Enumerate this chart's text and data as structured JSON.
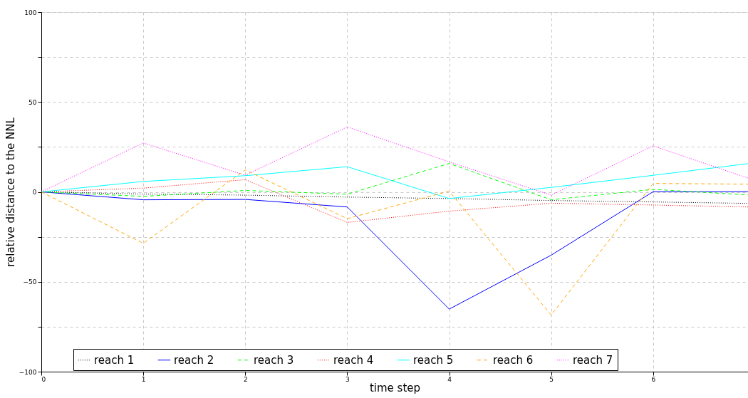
{
  "chart_data": {
    "type": "line",
    "xlabel": "time step",
    "ylabel": "relative distance to the NNL",
    "xlim": [
      0,
      6.93
    ],
    "ylim": [
      -100,
      100
    ],
    "xticks": [
      0,
      1,
      2,
      3,
      4,
      5,
      6
    ],
    "yticks": [
      -100,
      {
        "value": -75,
        "label": null
      },
      -50,
      {
        "value": -25,
        "label": null
      },
      0,
      {
        "value": 25,
        "label": null
      },
      50,
      {
        "value": 75,
        "label": null
      },
      100
    ],
    "x": [
      0,
      1,
      2,
      3,
      4,
      5,
      6,
      6.93
    ],
    "grid": true,
    "legend": "bottom",
    "marker": "none",
    "series": [
      {
        "name": "reach 1",
        "color": "#000000",
        "line_style": "dotted",
        "values": [
          0,
          -1.2,
          -1.8,
          -2.9,
          -3.7,
          -4.8,
          -5.6,
          -6.4
        ]
      },
      {
        "name": "reach 2",
        "color": "#0000ff",
        "line_style": "solid",
        "values": [
          0,
          -4.4,
          -4.2,
          -8.4,
          -65.2,
          -35.2,
          0.1,
          0.1
        ]
      },
      {
        "name": "reach 3",
        "color": "#00ff00",
        "line_style": "dashed",
        "values": [
          0,
          -2.5,
          0.8,
          -1.3,
          15.8,
          -4.4,
          1.4,
          -1.7
        ]
      },
      {
        "name": "reach 4",
        "color": "#ff0000",
        "line_style": "dotted",
        "values": [
          0,
          2.1,
          6.8,
          -17,
          -10.7,
          -6.3,
          -7.3,
          -8.4
        ]
      },
      {
        "name": "reach 5",
        "color": "#00ffff",
        "line_style": "solid",
        "values": [
          0,
          5.8,
          9,
          14,
          -3.7,
          2.5,
          9.2,
          15.7
        ]
      },
      {
        "name": "reach 6",
        "color": "#ffa500",
        "line_style": "dashed",
        "values": [
          0,
          -28.6,
          12.2,
          -14.9,
          0.4,
          -68.5,
          4.7,
          4.3
        ]
      },
      {
        "name": "reach 7",
        "color": "#ff00ff",
        "line_style": "dotted",
        "values": [
          0,
          27.2,
          9.3,
          36.1,
          16.7,
          -1.8,
          25.6,
          7.7
        ]
      }
    ]
  }
}
